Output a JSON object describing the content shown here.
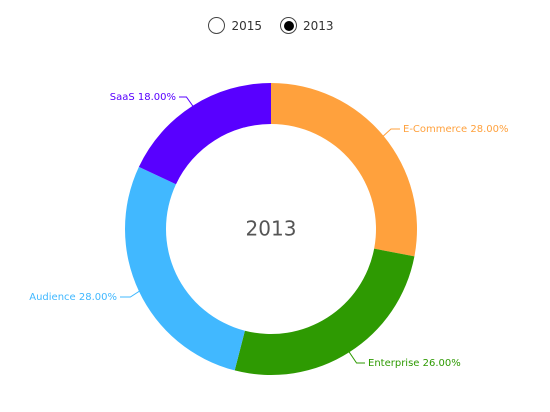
{
  "year_selector": {
    "options": [
      {
        "label": "2015",
        "selected": false
      },
      {
        "label": "2013",
        "selected": true
      }
    ]
  },
  "chart_data": {
    "type": "pie",
    "donut": true,
    "center_label": "2013",
    "label_format": "{name} {value}%",
    "start_angle_deg": 0,
    "direction": "clockwise",
    "slices": [
      {
        "name": "E-Commerce",
        "value": 28.0,
        "display": "28.00%",
        "color": "#ffa13d"
      },
      {
        "name": "Enterprise",
        "value": 26.0,
        "display": "26.00%",
        "color": "#2e9a02"
      },
      {
        "name": "Audience",
        "value": 28.0,
        "display": "28.00%",
        "color": "#41b8ff"
      },
      {
        "name": "SaaS",
        "value": 18.0,
        "display": "18.00%",
        "color": "#5800ff"
      }
    ]
  }
}
